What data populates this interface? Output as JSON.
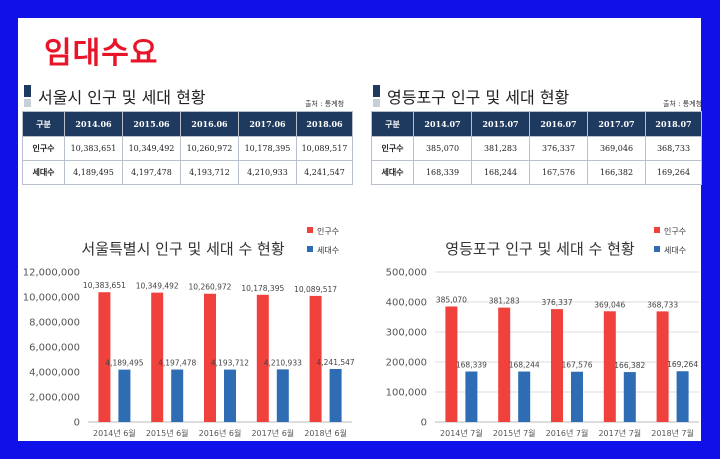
{
  "page_title": "임대수요",
  "left_section": {
    "heading": "서울시 인구 및 세대 현황",
    "source": "출처 : 통계청",
    "table": {
      "headers": [
        "구분",
        "2014.06",
        "2015.06",
        "2016.06",
        "2017.06",
        "2018.06"
      ],
      "rows": [
        [
          "인구수",
          "10,383,651",
          "10,349,492",
          "10,260,972",
          "10,178,395",
          "10,089,517"
        ],
        [
          "세대수",
          "4,189,495",
          "4,197,478",
          "4,193,712",
          "4,210,933",
          "4,241,547"
        ]
      ]
    }
  },
  "right_section": {
    "heading": "영등포구 인구 및 세대 현황",
    "source": "출처 : 통계청",
    "table": {
      "headers": [
        "구분",
        "2014.07",
        "2015.07",
        "2016.07",
        "2017.07",
        "2018.07"
      ],
      "rows": [
        [
          "인구수",
          "385,070",
          "381,283",
          "376,337",
          "369,046",
          "368,733"
        ],
        [
          "세대수",
          "168,339",
          "168,244",
          "167,576",
          "166,382",
          "169,264"
        ]
      ]
    }
  },
  "colors": {
    "population": "#f0413c",
    "households": "#2e6db4",
    "frame": "#1010e8",
    "title": "#e8142a",
    "header": "#1f3a5f"
  },
  "chart_data": [
    {
      "type": "bar",
      "title": "서울특별시 인구 및 세대 수 현황",
      "categories": [
        "2014년 6월",
        "2015년 6월",
        "2016년 6월",
        "2017년 6월",
        "2018년 6월"
      ],
      "series": [
        {
          "name": "인구수",
          "values": [
            10383651,
            10349492,
            10260972,
            10178395,
            10089517
          ],
          "labels": [
            "10,383,651",
            "10,349,492",
            "10,260,972",
            "10,178,395",
            "10,089,517"
          ]
        },
        {
          "name": "세대수",
          "values": [
            4189495,
            4197478,
            4193712,
            4210933,
            4241547
          ],
          "labels": [
            "4,189,495",
            "4,197,478",
            "4,193,712",
            "4,210,933",
            "4,241,547"
          ]
        }
      ],
      "ylim": [
        0,
        12000000
      ],
      "yticks": [
        0,
        2000000,
        4000000,
        6000000,
        8000000,
        10000000,
        12000000
      ],
      "ytick_labels": [
        "0",
        "2,000,000",
        "4,000,000",
        "6,000,000",
        "8,000,000",
        "10,000,000",
        "12,000,000"
      ],
      "legend": "top-right",
      "grid": false
    },
    {
      "type": "bar",
      "title": "영등포구 인구 및 세대 수 현황",
      "categories": [
        "2014년 7월",
        "2015년 7월",
        "2016년 7월",
        "2017년 7월",
        "2018년 7월"
      ],
      "series": [
        {
          "name": "인구수",
          "values": [
            385070,
            381283,
            376337,
            369046,
            368733
          ],
          "labels": [
            "385,070",
            "381,283",
            "376,337",
            "369,046",
            "368,733"
          ]
        },
        {
          "name": "세대수",
          "values": [
            168339,
            168244,
            167576,
            166382,
            169264
          ],
          "labels": [
            "168,339",
            "168,244",
            "167,576",
            "166,382",
            "169,264"
          ]
        }
      ],
      "ylim": [
        0,
        500000
      ],
      "yticks": [
        0,
        100000,
        200000,
        300000,
        400000,
        500000
      ],
      "ytick_labels": [
        "0",
        "100,000",
        "200,000",
        "300,000",
        "400,000",
        "500,000"
      ],
      "legend": "top-right",
      "grid": true
    }
  ]
}
